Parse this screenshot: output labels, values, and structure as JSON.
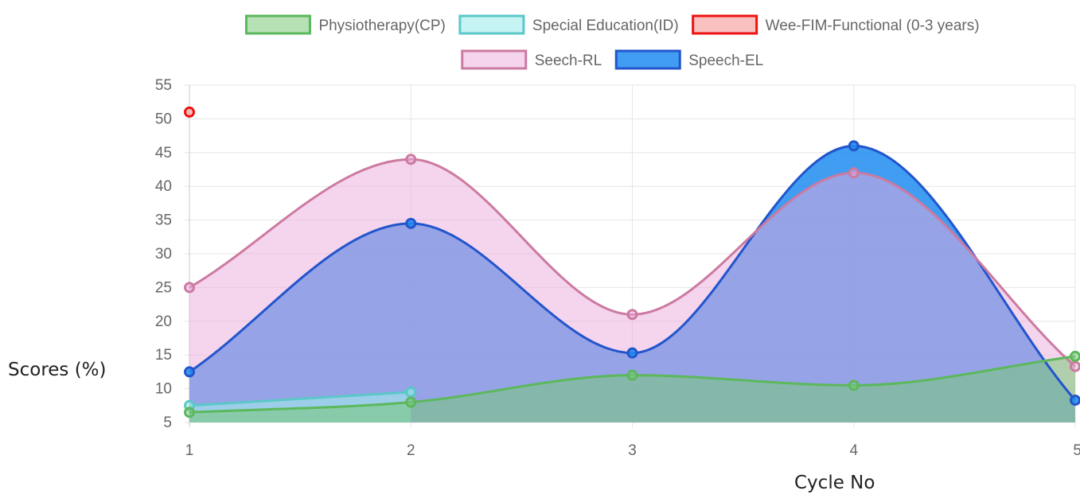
{
  "chart_data": {
    "type": "area",
    "x": [
      1,
      2,
      3,
      4,
      5
    ],
    "xlabel": "Cycle No",
    "ylabel": "Scores (%)",
    "ylim": [
      5,
      55
    ],
    "yticks": [
      5,
      10,
      15,
      20,
      25,
      30,
      35,
      40,
      45,
      50,
      55
    ],
    "xticks": [
      1,
      2,
      3,
      4,
      5
    ],
    "grid": true,
    "legend_position": "top",
    "series": [
      {
        "name": "Physiotherapy(CP)",
        "values": [
          6.5,
          8,
          12,
          10.5,
          14.8
        ],
        "color": "#5cb85c",
        "fill": "rgba(120,200,120,0.55)"
      },
      {
        "name": "Special Education(ID)",
        "values": [
          7.5,
          9.5,
          null,
          null,
          null
        ],
        "color": "#5bc8c8",
        "fill": "rgba(160,235,235,0.6)"
      },
      {
        "name": "Wee-FIM-Functional (0-3 years)",
        "values": [
          51,
          null,
          null,
          null,
          null
        ],
        "color": "#ee1111",
        "fill": "rgba(245,150,150,0.6)"
      },
      {
        "name": "Seech-RL",
        "values": [
          25,
          44,
          21,
          42,
          13.3
        ],
        "color": "#cc7aa0",
        "fill": "rgba(235,170,220,0.5)"
      },
      {
        "name": "Speech-EL",
        "values": [
          12.5,
          34.5,
          15.3,
          46,
          8.3
        ],
        "color": "#2255cc",
        "fill": "rgba(30,140,240,0.85)"
      }
    ]
  }
}
